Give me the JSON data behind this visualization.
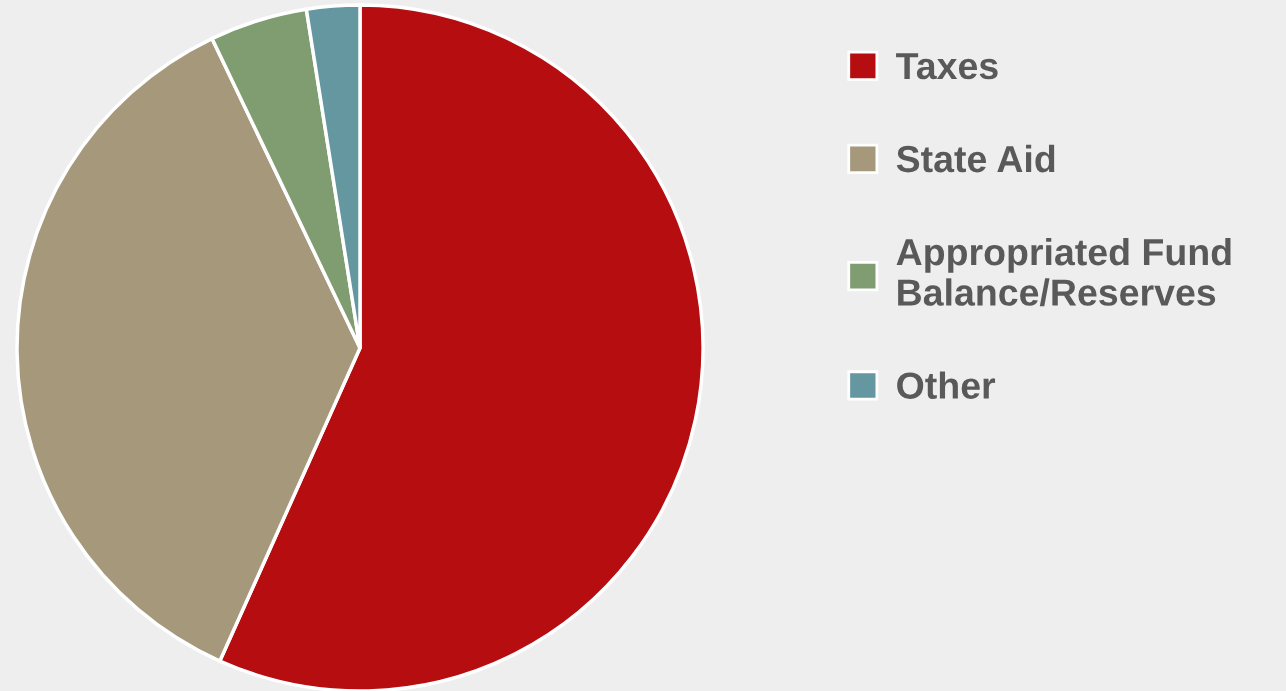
{
  "chart_data": {
    "type": "pie",
    "categories": [
      "Taxes",
      "State Aid",
      "Appropriated Fund\nBalance/Reserves",
      "Other"
    ],
    "values": [
      56.7,
      36.2,
      4.6,
      2.5
    ],
    "colors": [
      "#b50d10",
      "#a5987b",
      "#7f9d70",
      "#6497a0"
    ],
    "legend": "right"
  }
}
